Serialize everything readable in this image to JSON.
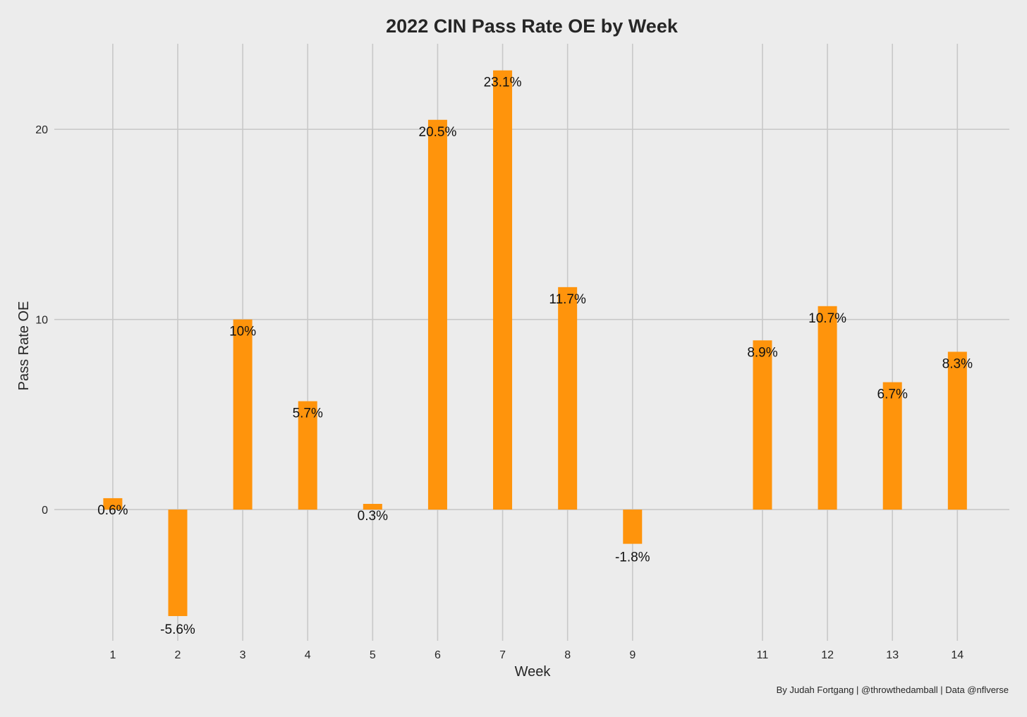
{
  "chart_data": {
    "type": "bar",
    "title": "2022 CIN Pass Rate OE by Week",
    "xlabel": "Week",
    "ylabel": "Pass Rate OE",
    "caption": "By Judah Fortgang | @throwthedamball | Data @nflverse",
    "x_ticks": [
      1,
      2,
      3,
      4,
      5,
      6,
      7,
      8,
      9,
      11,
      12,
      13,
      14
    ],
    "y_ticks": [
      0,
      10,
      20
    ],
    "xlim": [
      0.1,
      14.8
    ],
    "ylim": [
      -6.9,
      24.5
    ],
    "grid": true,
    "bar_color": "#ff940c",
    "background_color": "#ececec",
    "grid_color": "#c8c8c8",
    "series": [
      {
        "values": [
          {
            "week": 1,
            "value": 0.6,
            "label": "0.6%"
          },
          {
            "week": 2,
            "value": -5.6,
            "label": "-5.6%"
          },
          {
            "week": 3,
            "value": 10.0,
            "label": "10%"
          },
          {
            "week": 4,
            "value": 5.7,
            "label": "5.7%"
          },
          {
            "week": 5,
            "value": 0.3,
            "label": "0.3%"
          },
          {
            "week": 6,
            "value": 20.5,
            "label": "20.5%"
          },
          {
            "week": 7,
            "value": 23.1,
            "label": "23.1%"
          },
          {
            "week": 8,
            "value": 11.7,
            "label": "11.7%"
          },
          {
            "week": 9,
            "value": -1.8,
            "label": "-1.8%"
          },
          {
            "week": 11,
            "value": 8.9,
            "label": "8.9%"
          },
          {
            "week": 12,
            "value": 10.7,
            "label": "10.7%"
          },
          {
            "week": 13,
            "value": 6.7,
            "label": "6.7%"
          },
          {
            "week": 14,
            "value": 8.3,
            "label": "8.3%"
          }
        ]
      }
    ]
  }
}
